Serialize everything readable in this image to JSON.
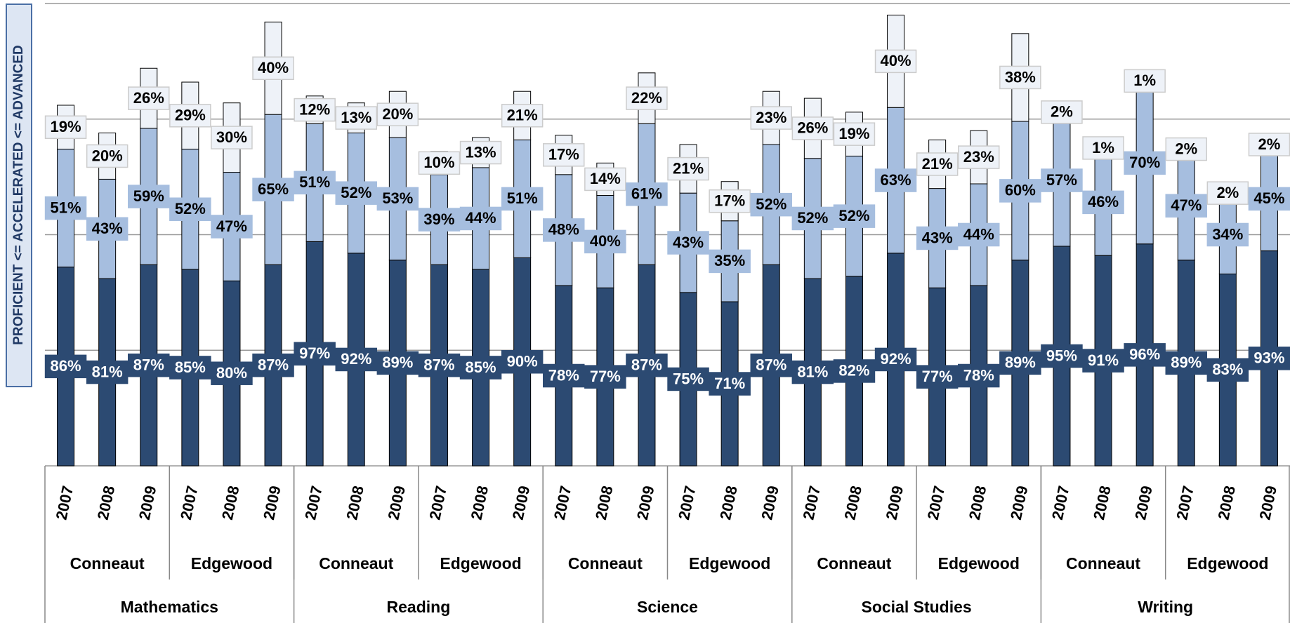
{
  "chart_data": {
    "type": "stacked_bar",
    "y_axis_label": "PROFICIENT <= ACCELERATED <= ADVANCED",
    "categories": [
      "2007",
      "2008",
      "2009",
      "2007",
      "2008",
      "2009",
      "2007",
      "2008",
      "2009",
      "2007",
      "2008",
      "2009",
      "2007",
      "2008",
      "2009",
      "2007",
      "2008",
      "2009",
      "2007",
      "2008",
      "2009",
      "2007",
      "2008",
      "2009",
      "2007",
      "2008",
      "2009",
      "2007",
      "2008",
      "2009"
    ],
    "schools": [
      "Conneaut",
      "Edgewood",
      "Conneaut",
      "Edgewood",
      "Conneaut",
      "Edgewood",
      "Conneaut",
      "Edgewood",
      "Conneaut",
      "Edgewood"
    ],
    "subjects": [
      "Mathematics",
      "Reading",
      "Science",
      "Social Studies",
      "Writing"
    ],
    "series": [
      {
        "color": "#2c4a72",
        "label_text_color": "#ffffff",
        "values": [
          86,
          81,
          87,
          85,
          80,
          87,
          97,
          92,
          89,
          87,
          85,
          90,
          78,
          77,
          87,
          75,
          71,
          87,
          81,
          82,
          92,
          77,
          78,
          89,
          95,
          91,
          96,
          89,
          83,
          93
        ],
        "value_labels": [
          "86%",
          "81%",
          "87%",
          "85%",
          "80%",
          "87%",
          "97%",
          "92%",
          "89%",
          "87%",
          "85%",
          "90%",
          "78%",
          "77%",
          "87%",
          "75%",
          "71%",
          "87%",
          "81%",
          "82%",
          "92%",
          "77%",
          "78%",
          "89%",
          "95%",
          "91%",
          "96%",
          "89%",
          "83%",
          "93%"
        ]
      },
      {
        "color": "#a6bedf",
        "label_text_color": "#000000",
        "values": [
          51,
          43,
          59,
          52,
          47,
          65,
          51,
          52,
          53,
          39,
          44,
          51,
          48,
          40,
          61,
          43,
          35,
          52,
          52,
          52,
          63,
          43,
          44,
          60,
          57,
          46,
          70,
          47,
          34,
          45
        ],
        "value_labels": [
          "51%",
          "43%",
          "59%",
          "52%",
          "47%",
          "65%",
          "51%",
          "52%",
          "53%",
          "39%",
          "44%",
          "51%",
          "48%",
          "40%",
          "61%",
          "43%",
          "35%",
          "52%",
          "52%",
          "52%",
          "63%",
          "43%",
          "44%",
          "60%",
          "57%",
          "46%",
          "70%",
          "47%",
          "34%",
          "45%"
        ]
      },
      {
        "color": "#eef2f8",
        "label_text_color": "#000000",
        "values": [
          19,
          20,
          26,
          29,
          30,
          40,
          12,
          13,
          20,
          10,
          13,
          21,
          17,
          14,
          22,
          21,
          17,
          23,
          26,
          19,
          40,
          21,
          23,
          38,
          2,
          1,
          1,
          2,
          2,
          2
        ],
        "value_labels": [
          "19%",
          "20%",
          "26%",
          "29%",
          "30%",
          "40%",
          "12%",
          "13%",
          "20%",
          "10%",
          "13%",
          "21%",
          "17%",
          "14%",
          "22%",
          "21%",
          "17%",
          "23%",
          "26%",
          "19%",
          "40%",
          "21%",
          "23%",
          "38%",
          "2%",
          "1%",
          "1%",
          "2%",
          "2%",
          "2%"
        ]
      }
    ],
    "ylim": [
      0,
      200
    ],
    "yticks": [
      0,
      50,
      100,
      150,
      200
    ],
    "grid": true
  }
}
